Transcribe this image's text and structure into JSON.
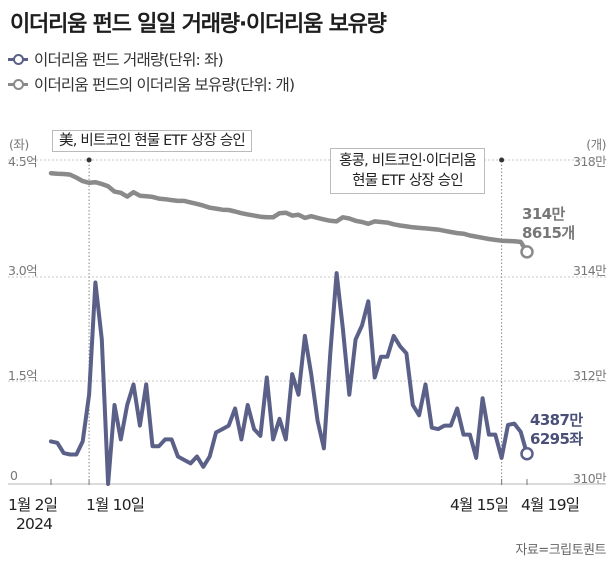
{
  "header": {
    "title": "이더리움 펀드 일일 거래량·이더리움 보유량"
  },
  "legend": [
    {
      "label": "이더리움 펀드 거래량(단위: 좌)",
      "color": "#5a6088"
    },
    {
      "label": "이더리움 펀드의 이더리움 보유량(단위: 개)",
      "color": "#8a8a8a"
    }
  ],
  "source": "자료=크립토퀀트",
  "chart_data": {
    "type": "line",
    "title": "이더리움 펀드 일일 거래량·이더리움 보유량",
    "left_axis": {
      "unit_label": "(좌)",
      "ticks": [
        {
          "value": 0,
          "label": "0"
        },
        {
          "value": 1.5,
          "label": "1.5억"
        },
        {
          "value": 3.0,
          "label": "3.0억"
        },
        {
          "value": 4.5,
          "label": "4.5억"
        }
      ],
      "range": [
        0,
        4.5
      ],
      "units": "억 좌"
    },
    "right_axis": {
      "unit_label": "(개)",
      "ticks": [
        {
          "value": 310,
          "label": "310만"
        },
        {
          "value": 312,
          "label": "312만"
        },
        {
          "value": 314,
          "label": "314만"
        },
        {
          "value": 318,
          "label": "318만"
        }
      ],
      "units": "만 개"
    },
    "x_labels": [
      {
        "label": "1월 2일",
        "sub": "2024",
        "index": 0
      },
      {
        "label": "1월 10일",
        "index": 6
      },
      {
        "label": "4월 15일",
        "index": 71
      },
      {
        "label": "4월 19일",
        "index": 75
      }
    ],
    "grid": true,
    "annotations": [
      {
        "text": "美, 비트코인 현물 ETF 상장 승인",
        "index": 6
      },
      {
        "text_lines": [
          "홍콩, 비트코인·이더리움",
          "현물 ETF 상장 승인"
        ],
        "index": 71
      }
    ],
    "series": [
      {
        "name": "이더리움 펀드 거래량",
        "axis": "left",
        "color": "#5a6088",
        "end_label": [
          "4387만",
          "6295좌"
        ],
        "values": [
          0.62,
          0.6,
          0.45,
          0.43,
          0.43,
          0.62,
          1.3,
          2.92,
          2.1,
          0.0,
          1.15,
          0.65,
          1.15,
          1.45,
          0.85,
          1.45,
          0.55,
          0.55,
          0.65,
          0.65,
          0.4,
          0.35,
          0.3,
          0.4,
          0.25,
          0.4,
          0.75,
          0.8,
          0.85,
          1.1,
          0.65,
          1.15,
          0.8,
          0.7,
          1.55,
          0.65,
          0.95,
          0.65,
          1.6,
          1.3,
          2.15,
          1.6,
          0.92,
          0.52,
          1.9,
          3.05,
          2.25,
          1.3,
          2.1,
          2.3,
          2.65,
          1.55,
          1.85,
          1.85,
          2.15,
          2.0,
          1.9,
          1.15,
          1.0,
          1.45,
          0.82,
          0.8,
          0.85,
          0.85,
          1.1,
          0.72,
          0.72,
          0.38,
          1.25,
          0.72,
          0.72,
          0.38,
          0.86,
          0.88,
          0.76,
          0.44
        ]
      },
      {
        "name": "이더리움 펀드의 이더리움 보유량",
        "axis": "right",
        "color": "#8a8a8a",
        "end_label": [
          "314만",
          "8615개"
        ],
        "values": [
          317.55,
          317.53,
          317.52,
          317.5,
          317.4,
          317.28,
          317.22,
          317.24,
          317.18,
          317.1,
          316.92,
          316.88,
          316.75,
          316.9,
          316.78,
          316.76,
          316.74,
          316.68,
          316.66,
          316.63,
          316.6,
          316.6,
          316.55,
          316.5,
          316.44,
          316.37,
          316.34,
          316.3,
          316.29,
          316.24,
          316.18,
          316.14,
          316.1,
          316.06,
          316.04,
          316.04,
          316.18,
          316.2,
          316.1,
          316.13,
          316.02,
          316.08,
          316.02,
          315.97,
          315.92,
          315.9,
          316.04,
          316.0,
          315.92,
          315.88,
          315.82,
          315.9,
          315.88,
          315.86,
          315.8,
          315.76,
          315.73,
          315.7,
          315.68,
          315.66,
          315.64,
          315.62,
          315.58,
          315.54,
          315.5,
          315.48,
          315.42,
          315.38,
          315.34,
          315.3,
          315.27,
          315.24,
          315.23,
          315.22,
          315.2,
          314.86
        ]
      }
    ]
  }
}
